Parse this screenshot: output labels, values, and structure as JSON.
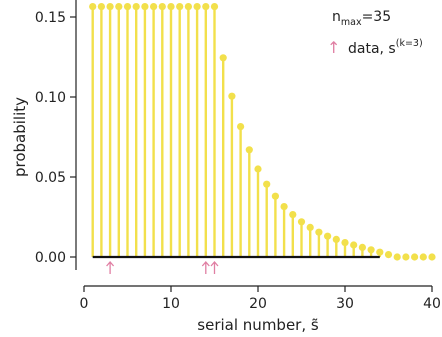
{
  "chart_data": {
    "type": "stem",
    "xlabel": "serial number, s̃",
    "ylabel": "probability",
    "xlim": [
      0,
      40
    ],
    "ylim": [
      0,
      0.155
    ],
    "xticks": [
      0,
      10,
      20,
      30,
      40
    ],
    "yticks": [
      0.0,
      0.05,
      0.1,
      0.15
    ],
    "ytick_labels": [
      "0.00",
      "0.05",
      "0.10",
      "0.15"
    ],
    "grid": false,
    "series": [
      {
        "x": [
          1,
          2,
          3,
          4,
          5,
          6,
          7,
          8,
          9,
          10,
          11,
          12,
          13,
          14,
          15,
          16,
          17,
          18,
          19,
          20,
          21,
          22,
          23,
          24,
          25,
          26,
          27,
          28,
          29,
          30,
          31,
          32,
          33,
          34,
          35,
          36,
          37,
          38,
          39,
          40
        ],
        "values": [
          0.1565,
          0.1565,
          0.1565,
          0.1565,
          0.1565,
          0.1565,
          0.1565,
          0.1565,
          0.1565,
          0.1565,
          0.1565,
          0.1565,
          0.1565,
          0.1565,
          0.1565,
          0.1245,
          0.1005,
          0.0815,
          0.067,
          0.055,
          0.0455,
          0.038,
          0.0315,
          0.0265,
          0.022,
          0.0185,
          0.0155,
          0.013,
          0.011,
          0.009,
          0.0075,
          0.006,
          0.0045,
          0.003,
          0.0015,
          0,
          0,
          0,
          0,
          0
        ],
        "color": "#f2e04b"
      }
    ],
    "baseline_range": [
      1,
      34
    ],
    "baseline_color": "#111111",
    "data_points": [
      3,
      14,
      15
    ],
    "data_color": "#e07fa3",
    "legend": {
      "position": "top-right",
      "nmax_base": "n",
      "nmax_sub": "max",
      "nmax_value": "=35",
      "arrow_glyph": "↑",
      "data_text": "data, s",
      "data_sup": "(k=3)"
    }
  }
}
